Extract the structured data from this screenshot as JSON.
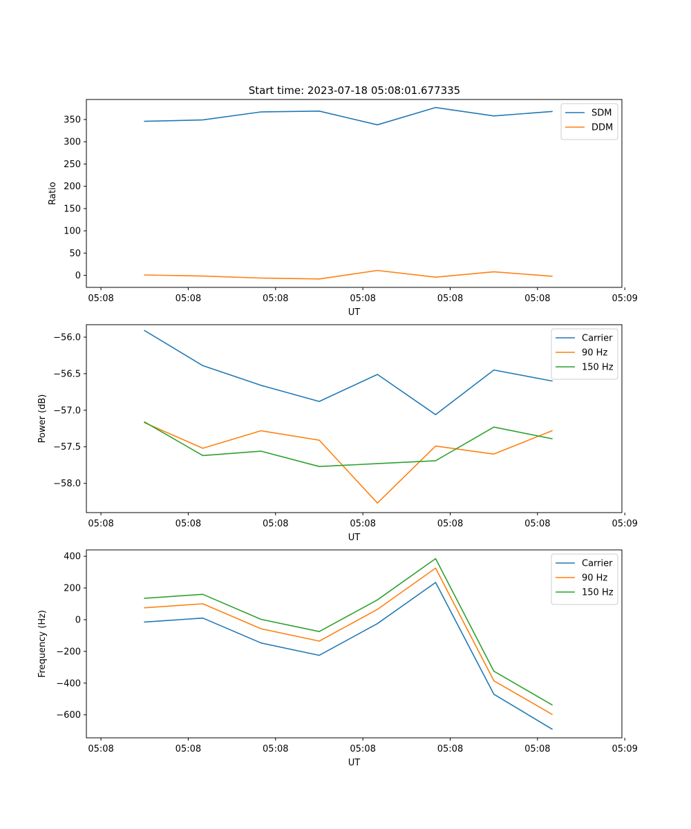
{
  "figure_title": "Start time: 2023-07-18 05:08:01.677335",
  "colors": {
    "blue": "#1f77b4",
    "orange": "#ff7f0e",
    "green": "#2ca02c"
  },
  "chart_data": [
    {
      "type": "line",
      "title": "Start time: 2023-07-18 05:08:01.677335",
      "xlabel": "UT",
      "ylabel": "Ratio",
      "x": [
        1,
        2,
        3,
        4,
        5,
        6,
        7,
        8
      ],
      "xlim": [
        0,
        9.2
      ],
      "xticks": [
        0.25,
        1.75,
        3.25,
        4.75,
        6.25,
        7.75,
        9.25
      ],
      "xtick_labels": [
        "05:08",
        "05:08",
        "05:08",
        "05:08",
        "05:08",
        "05:08",
        "05:09"
      ],
      "ylim": [
        -27,
        395
      ],
      "yticks": [
        0,
        50,
        100,
        150,
        200,
        250,
        300,
        350
      ],
      "ytick_labels": [
        "0",
        "50",
        "100",
        "150",
        "200",
        "250",
        "300",
        "350"
      ],
      "legend_position": "top-right",
      "grid": false,
      "series": [
        {
          "name": "SDM",
          "color": "#1f77b4",
          "values": [
            346,
            349,
            367,
            369,
            338,
            377,
            358,
            368
          ]
        },
        {
          "name": "DDM",
          "color": "#ff7f0e",
          "values": [
            1,
            -1.5,
            -6,
            -8,
            11,
            -4,
            8,
            -2
          ]
        }
      ]
    },
    {
      "type": "line",
      "title": "",
      "xlabel": "UT",
      "ylabel": "Power (dB)",
      "x": [
        1,
        2,
        3,
        4,
        5,
        6,
        7,
        8
      ],
      "xlim": [
        0,
        9.2
      ],
      "xticks": [
        0.25,
        1.75,
        3.25,
        4.75,
        6.25,
        7.75,
        9.25
      ],
      "xtick_labels": [
        "05:08",
        "05:08",
        "05:08",
        "05:08",
        "05:08",
        "05:08",
        "05:09"
      ],
      "ylim": [
        -58.4,
        -55.83
      ],
      "yticks": [
        -58.0,
        -57.5,
        -57.0,
        -56.5,
        -56.0
      ],
      "ytick_labels": [
        "−58.0",
        "−57.5",
        "−57.0",
        "−56.5",
        "−56.0"
      ],
      "legend_position": "top-right",
      "grid": false,
      "series": [
        {
          "name": "Carrier",
          "color": "#1f77b4",
          "values": [
            -55.91,
            -56.39,
            -56.66,
            -56.88,
            -56.51,
            -57.06,
            -56.45,
            -56.6
          ]
        },
        {
          "name": "90 Hz",
          "color": "#ff7f0e",
          "values": [
            -57.17,
            -57.52,
            -57.28,
            -57.41,
            -58.27,
            -57.49,
            -57.6,
            -57.28
          ]
        },
        {
          "name": "150 Hz",
          "color": "#2ca02c",
          "values": [
            -57.16,
            -57.62,
            -57.56,
            -57.77,
            -57.73,
            -57.69,
            -57.23,
            -57.39
          ]
        }
      ]
    },
    {
      "type": "line",
      "title": "",
      "xlabel": "UT",
      "ylabel": "Frequency (Hz)",
      "x": [
        1,
        2,
        3,
        4,
        5,
        6,
        7,
        8
      ],
      "xlim": [
        0,
        9.2
      ],
      "xticks": [
        0.25,
        1.75,
        3.25,
        4.75,
        6.25,
        7.75,
        9.25
      ],
      "xtick_labels": [
        "05:08",
        "05:08",
        "05:08",
        "05:08",
        "05:08",
        "05:08",
        "05:09"
      ],
      "ylim": [
        -745,
        440
      ],
      "yticks": [
        -600,
        -400,
        -200,
        0,
        200,
        400
      ],
      "ytick_labels": [
        "−600",
        "−400",
        "−200",
        "0",
        "200",
        "400"
      ],
      "legend_position": "top-right",
      "grid": false,
      "series": [
        {
          "name": "Carrier",
          "color": "#1f77b4",
          "values": [
            -15,
            10,
            -147,
            -225,
            -25,
            235,
            -470,
            -690
          ]
        },
        {
          "name": "90 Hz",
          "color": "#ff7f0e",
          "values": [
            75,
            100,
            -57,
            -135,
            65,
            325,
            -385,
            -597
          ]
        },
        {
          "name": "150 Hz",
          "color": "#2ca02c",
          "values": [
            135,
            160,
            2,
            -75,
            125,
            385,
            -325,
            -537
          ]
        }
      ]
    }
  ]
}
